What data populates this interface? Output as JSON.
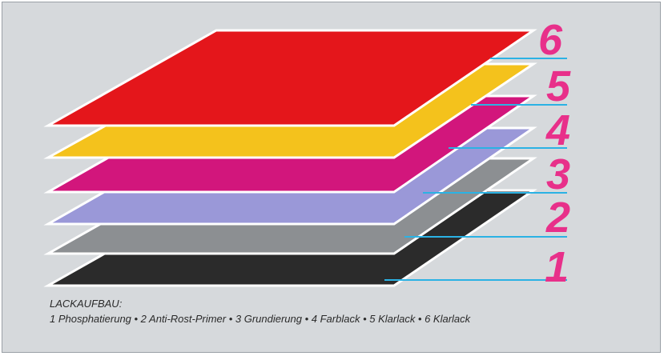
{
  "colors": {
    "background": "#d6d9dc",
    "layer_outline": "#ffffff",
    "leader_line": "#2bb2e4",
    "numbers": "#e8308a"
  },
  "layers": [
    {
      "number": "1",
      "color": "#2b2b2b"
    },
    {
      "number": "2",
      "color": "#8c8f92"
    },
    {
      "number": "3",
      "color": "#9a98d8"
    },
    {
      "number": "4",
      "color": "#d2167c"
    },
    {
      "number": "5",
      "color": "#f4c21c"
    },
    {
      "number": "6",
      "color": "#e4161b"
    }
  ],
  "caption": {
    "heading": "LACKAUFBAU:",
    "legend": "1 Phosphatierung • 2 Anti-Rost-Primer • 3 Grundierung • 4 Farblack • 5 Klarlack • 6 Klarlack"
  }
}
